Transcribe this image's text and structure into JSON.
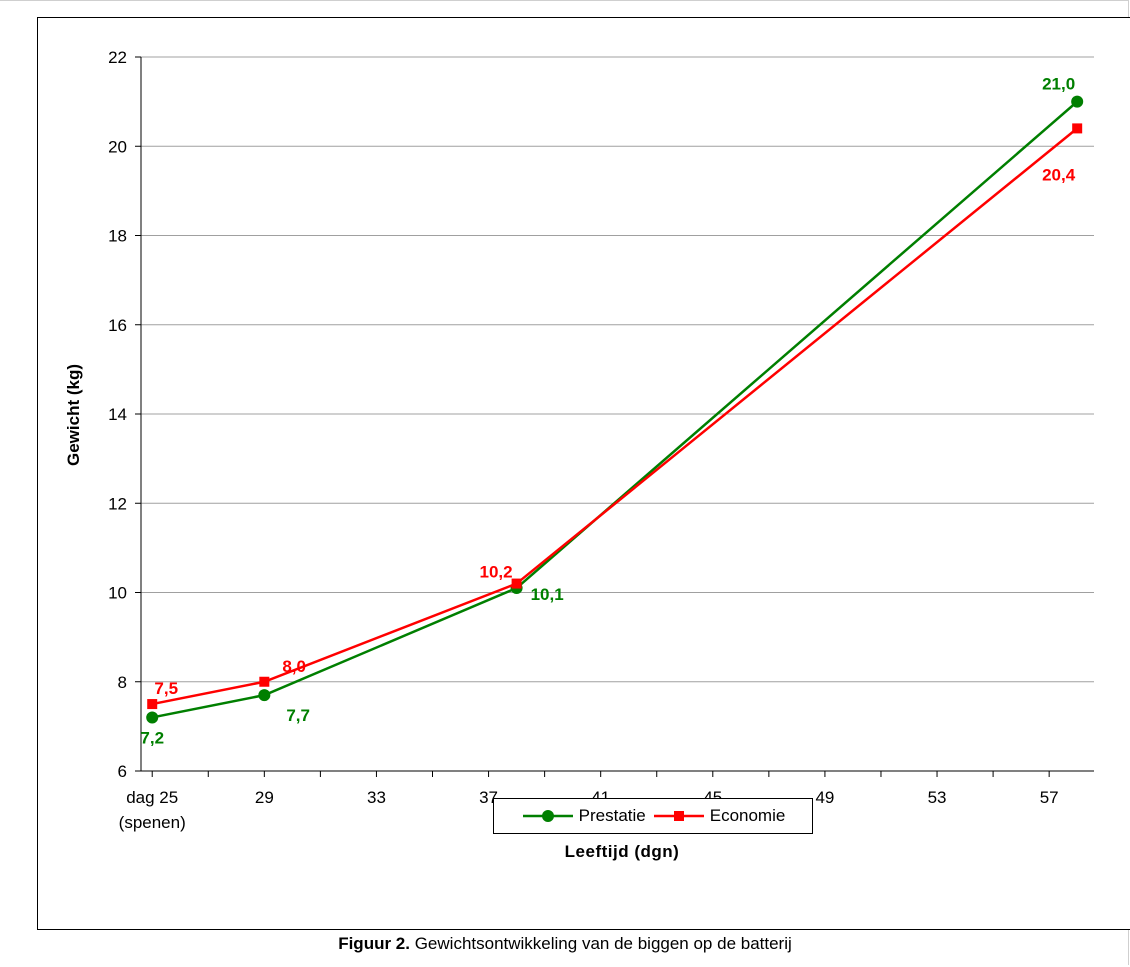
{
  "caption": {
    "label": "Figuur 2.",
    "text": " Gewichtsontwikkeling van de biggen op de batterij"
  },
  "chart_data": {
    "type": "line",
    "xlabel": "Leeftijd (dgn)",
    "ylabel": "Gewicht (kg)",
    "xlim": [
      24.6,
      58.6
    ],
    "ylim": [
      6,
      22
    ],
    "yticks": [
      6,
      8,
      10,
      12,
      14,
      16,
      18,
      20,
      22
    ],
    "xticks": [
      {
        "value": 25,
        "lines": [
          "dag 25",
          "(spenen)"
        ]
      },
      {
        "value": 29,
        "lines": [
          "29"
        ]
      },
      {
        "value": 33,
        "lines": [
          "33"
        ]
      },
      {
        "value": 37,
        "lines": [
          "37"
        ]
      },
      {
        "value": 41,
        "lines": [
          "41"
        ]
      },
      {
        "value": 45,
        "lines": [
          "45"
        ]
      },
      {
        "value": 49,
        "lines": [
          "49"
        ]
      },
      {
        "value": 53,
        "lines": [
          "53"
        ]
      },
      {
        "value": 57,
        "lines": [
          "57"
        ]
      }
    ],
    "grid": "horizontal",
    "legend_position": "bottom",
    "series": [
      {
        "name": "Prestatie",
        "color": "#007f00",
        "marker": "circle",
        "x": [
          25,
          29,
          38,
          58
        ],
        "y": [
          7.2,
          7.7,
          10.1,
          21.0
        ],
        "labels": [
          "7,2",
          "7,7",
          "10,1",
          "21,0"
        ],
        "label_pos": [
          "below",
          "below-right",
          "right",
          "above-left"
        ]
      },
      {
        "name": "Economie",
        "color": "#ff0000",
        "marker": "square",
        "x": [
          25,
          29,
          38,
          58
        ],
        "y": [
          7.5,
          8.0,
          10.2,
          20.4
        ],
        "labels": [
          "7,5",
          "8,0",
          "10,2",
          "20,4"
        ],
        "label_pos": [
          "above",
          "above-right",
          "left",
          "below-left"
        ]
      }
    ]
  }
}
